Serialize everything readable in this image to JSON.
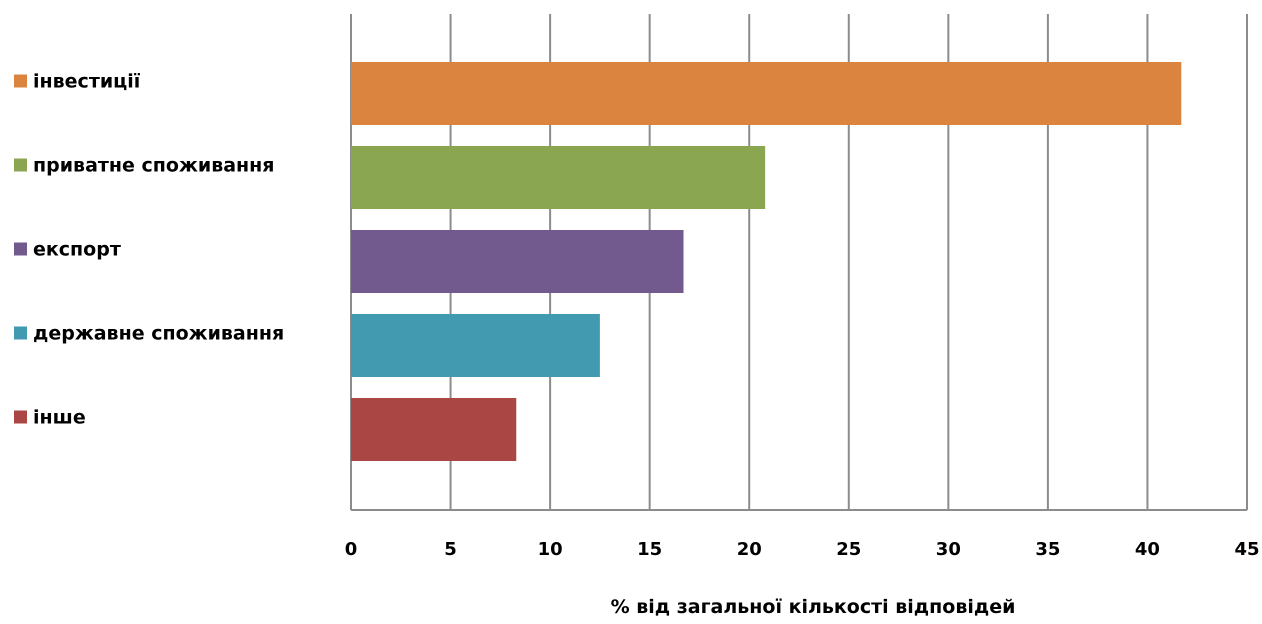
{
  "chart_data": {
    "type": "bar",
    "orientation": "horizontal",
    "categories": [
      "інвестиції",
      "приватне споживання",
      "експорт",
      "державне споживання",
      "інше"
    ],
    "values": [
      41.7,
      20.8,
      16.7,
      12.5,
      8.3
    ],
    "colors": [
      "#DA843F",
      "#8BA651",
      "#725A8F",
      "#429AB0",
      "#AA4644"
    ],
    "title": "",
    "xlabel": "% від загальної кількості відповідей",
    "ylabel": "",
    "xlim": [
      0,
      45
    ],
    "xticks": [
      "0",
      "5",
      "10",
      "15",
      "20",
      "25",
      "30",
      "35",
      "40",
      "45"
    ],
    "grid": "vertical",
    "legend": "left"
  }
}
